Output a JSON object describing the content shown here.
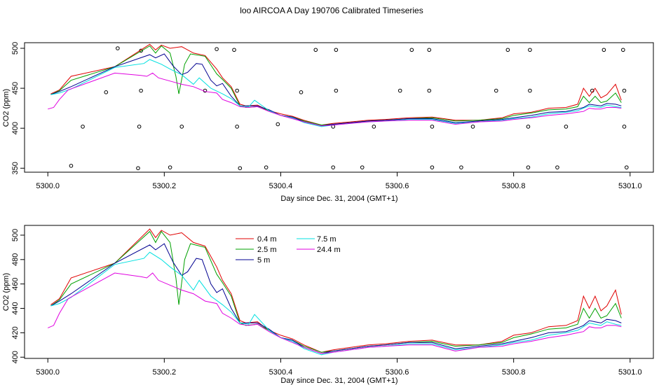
{
  "figure": {
    "title": "loo AIRCOA A  Day 190706  Calibrated Timeseries"
  },
  "chart_data": [
    {
      "type": "line",
      "name": "top-panel",
      "xlabel": "Day since Dec. 31, 2004 (GMT+1)",
      "ylabel": "CO2 (ppm)",
      "xlim": [
        5299.96,
        5301.04
      ],
      "ylim": [
        345,
        507
      ],
      "xticks": [
        5300.0,
        5300.2,
        5300.4,
        5300.6,
        5300.8,
        5301.0
      ],
      "xtick_labels": [
        "5300.0",
        "5300.2",
        "5300.4",
        "5300.6",
        "5300.8",
        "5301.0"
      ],
      "yticks": [
        350,
        400,
        450,
        500
      ],
      "ytick_labels": [
        "350",
        "400",
        "450",
        "500"
      ],
      "legend": "none",
      "calibration_points": {
        "marker": "open-circle",
        "points": [
          [
            5300.04,
            353
          ],
          [
            5300.06,
            402
          ],
          [
            5300.1,
            445
          ],
          [
            5300.12,
            500
          ],
          [
            5300.155,
            350
          ],
          [
            5300.157,
            402
          ],
          [
            5300.16,
            447
          ],
          [
            5300.16,
            497
          ],
          [
            5300.21,
            351
          ],
          [
            5300.23,
            402
          ],
          [
            5300.27,
            447
          ],
          [
            5300.29,
            499
          ],
          [
            5300.32,
            498
          ],
          [
            5300.325,
            447
          ],
          [
            5300.325,
            402
          ],
          [
            5300.33,
            350
          ],
          [
            5300.375,
            351
          ],
          [
            5300.395,
            405
          ],
          [
            5300.435,
            445
          ],
          [
            5300.46,
            498
          ],
          [
            5300.49,
            351
          ],
          [
            5300.49,
            402
          ],
          [
            5300.495,
            447
          ],
          [
            5300.495,
            498
          ],
          [
            5300.54,
            351
          ],
          [
            5300.56,
            402
          ],
          [
            5300.605,
            447
          ],
          [
            5300.625,
            498
          ],
          [
            5300.655,
            447
          ],
          [
            5300.655,
            498
          ],
          [
            5300.66,
            402
          ],
          [
            5300.66,
            351
          ],
          [
            5300.71,
            351
          ],
          [
            5300.73,
            402
          ],
          [
            5300.77,
            447
          ],
          [
            5300.79,
            498
          ],
          [
            5300.825,
            351
          ],
          [
            5300.825,
            402
          ],
          [
            5300.828,
            447
          ],
          [
            5300.828,
            498
          ],
          [
            5300.875,
            351
          ],
          [
            5300.89,
            402
          ],
          [
            5300.935,
            447
          ],
          [
            5300.955,
            498
          ],
          [
            5300.988,
            498
          ],
          [
            5300.99,
            447
          ],
          [
            5300.99,
            402
          ],
          [
            5300.994,
            351
          ]
        ]
      }
    },
    {
      "type": "line",
      "name": "bottom-panel",
      "xlabel": "Day since Dec. 31, 2004 (GMT+1)",
      "ylabel": "CO2 (ppm)",
      "xlim": [
        5299.96,
        5301.04
      ],
      "ylim": [
        399,
        508
      ],
      "xticks": [
        5300.0,
        5300.2,
        5300.4,
        5300.6,
        5300.8,
        5301.0
      ],
      "xtick_labels": [
        "5300.0",
        "5300.2",
        "5300.4",
        "5300.6",
        "5300.8",
        "5301.0"
      ],
      "yticks": [
        400,
        420,
        440,
        460,
        480,
        500
      ],
      "ytick_labels": [
        "400",
        "420",
        "440",
        "460",
        "480",
        "500"
      ],
      "legend": "top-left"
    }
  ],
  "series": [
    {
      "name": "0.4 m",
      "color": "#e00000",
      "points": [
        [
          5300.005,
          443
        ],
        [
          5300.02,
          448
        ],
        [
          5300.04,
          465
        ],
        [
          5300.115,
          477
        ],
        [
          5300.175,
          505
        ],
        [
          5300.185,
          498
        ],
        [
          5300.195,
          504
        ],
        [
          5300.21,
          500
        ],
        [
          5300.23,
          502
        ],
        [
          5300.25,
          494
        ],
        [
          5300.27,
          491
        ],
        [
          5300.29,
          474
        ],
        [
          5300.3,
          463
        ],
        [
          5300.315,
          452
        ],
        [
          5300.33,
          430
        ],
        [
          5300.34,
          428
        ],
        [
          5300.36,
          429
        ],
        [
          5300.38,
          422
        ],
        [
          5300.4,
          418
        ],
        [
          5300.42,
          415
        ],
        [
          5300.44,
          410
        ],
        [
          5300.47,
          404
        ],
        [
          5300.49,
          406
        ],
        [
          5300.52,
          408
        ],
        [
          5300.55,
          410
        ],
        [
          5300.58,
          411
        ],
        [
          5300.62,
          413
        ],
        [
          5300.66,
          414
        ],
        [
          5300.7,
          410
        ],
        [
          5300.74,
          410
        ],
        [
          5300.78,
          413
        ],
        [
          5300.8,
          418
        ],
        [
          5300.83,
          420
        ],
        [
          5300.86,
          425
        ],
        [
          5300.89,
          426
        ],
        [
          5300.91,
          430
        ],
        [
          5300.92,
          450
        ],
        [
          5300.93,
          440
        ],
        [
          5300.94,
          450
        ],
        [
          5300.95,
          438
        ],
        [
          5300.96,
          442
        ],
        [
          5300.975,
          455
        ],
        [
          5300.985,
          435
        ]
      ]
    },
    {
      "name": "2.5 m",
      "color": "#00a000",
      "points": [
        [
          5300.005,
          442
        ],
        [
          5300.02,
          447
        ],
        [
          5300.04,
          460
        ],
        [
          5300.115,
          477
        ],
        [
          5300.175,
          503
        ],
        [
          5300.185,
          494
        ],
        [
          5300.195,
          503
        ],
        [
          5300.21,
          494
        ],
        [
          5300.22,
          465
        ],
        [
          5300.225,
          443
        ],
        [
          5300.235,
          480
        ],
        [
          5300.245,
          493
        ],
        [
          5300.27,
          490
        ],
        [
          5300.29,
          468
        ],
        [
          5300.3,
          461
        ],
        [
          5300.315,
          450
        ],
        [
          5300.33,
          428
        ],
        [
          5300.34,
          426
        ],
        [
          5300.36,
          427
        ],
        [
          5300.38,
          422
        ],
        [
          5300.4,
          416
        ],
        [
          5300.42,
          414
        ],
        [
          5300.44,
          409
        ],
        [
          5300.47,
          404
        ],
        [
          5300.49,
          405
        ],
        [
          5300.52,
          407
        ],
        [
          5300.55,
          409
        ],
        [
          5300.58,
          410
        ],
        [
          5300.62,
          412
        ],
        [
          5300.66,
          413
        ],
        [
          5300.7,
          409
        ],
        [
          5300.74,
          410
        ],
        [
          5300.78,
          412
        ],
        [
          5300.8,
          416
        ],
        [
          5300.83,
          419
        ],
        [
          5300.86,
          423
        ],
        [
          5300.89,
          424
        ],
        [
          5300.91,
          427
        ],
        [
          5300.92,
          440
        ],
        [
          5300.93,
          432
        ],
        [
          5300.94,
          440
        ],
        [
          5300.95,
          432
        ],
        [
          5300.96,
          434
        ],
        [
          5300.975,
          444
        ],
        [
          5300.985,
          432
        ]
      ]
    },
    {
      "name": "5 m",
      "color": "#000090",
      "points": [
        [
          5300.005,
          442
        ],
        [
          5300.02,
          446
        ],
        [
          5300.04,
          452
        ],
        [
          5300.115,
          477
        ],
        [
          5300.175,
          492
        ],
        [
          5300.185,
          488
        ],
        [
          5300.2,
          493
        ],
        [
          5300.215,
          478
        ],
        [
          5300.23,
          467
        ],
        [
          5300.24,
          470
        ],
        [
          5300.255,
          481
        ],
        [
          5300.265,
          480
        ],
        [
          5300.28,
          460
        ],
        [
          5300.29,
          453
        ],
        [
          5300.3,
          456
        ],
        [
          5300.315,
          440
        ],
        [
          5300.33,
          428
        ],
        [
          5300.34,
          428
        ],
        [
          5300.36,
          428
        ],
        [
          5300.38,
          423
        ],
        [
          5300.4,
          416
        ],
        [
          5300.42,
          414
        ],
        [
          5300.44,
          408
        ],
        [
          5300.47,
          403
        ],
        [
          5300.49,
          405
        ],
        [
          5300.52,
          407
        ],
        [
          5300.55,
          409
        ],
        [
          5300.58,
          410
        ],
        [
          5300.62,
          412
        ],
        [
          5300.66,
          412
        ],
        [
          5300.7,
          407
        ],
        [
          5300.74,
          409
        ],
        [
          5300.78,
          411
        ],
        [
          5300.8,
          413
        ],
        [
          5300.83,
          416
        ],
        [
          5300.86,
          420
        ],
        [
          5300.89,
          421
        ],
        [
          5300.91,
          424
        ],
        [
          5300.92,
          426
        ],
        [
          5300.93,
          430
        ],
        [
          5300.94,
          429
        ],
        [
          5300.95,
          428
        ],
        [
          5300.96,
          431
        ],
        [
          5300.975,
          430
        ],
        [
          5300.985,
          428
        ]
      ]
    },
    {
      "name": "7.5 m",
      "color": "#00e0e0",
      "points": [
        [
          5300.005,
          442
        ],
        [
          5300.02,
          444
        ],
        [
          5300.04,
          449
        ],
        [
          5300.115,
          476
        ],
        [
          5300.165,
          481
        ],
        [
          5300.175,
          486
        ],
        [
          5300.195,
          480
        ],
        [
          5300.21,
          474
        ],
        [
          5300.23,
          467
        ],
        [
          5300.25,
          455
        ],
        [
          5300.26,
          463
        ],
        [
          5300.28,
          450
        ],
        [
          5300.3,
          443
        ],
        [
          5300.315,
          437
        ],
        [
          5300.33,
          428
        ],
        [
          5300.345,
          427
        ],
        [
          5300.355,
          435
        ],
        [
          5300.38,
          422
        ],
        [
          5300.4,
          416
        ],
        [
          5300.42,
          413
        ],
        [
          5300.44,
          407
        ],
        [
          5300.47,
          402
        ],
        [
          5300.49,
          404
        ],
        [
          5300.52,
          406
        ],
        [
          5300.55,
          408
        ],
        [
          5300.58,
          409
        ],
        [
          5300.62,
          411
        ],
        [
          5300.66,
          411
        ],
        [
          5300.7,
          406
        ],
        [
          5300.74,
          408
        ],
        [
          5300.78,
          410
        ],
        [
          5300.8,
          412
        ],
        [
          5300.83,
          414
        ],
        [
          5300.86,
          418
        ],
        [
          5300.89,
          420
        ],
        [
          5300.91,
          422
        ],
        [
          5300.92,
          425
        ],
        [
          5300.93,
          428
        ],
        [
          5300.94,
          427
        ],
        [
          5300.95,
          426
        ],
        [
          5300.96,
          429
        ],
        [
          5300.975,
          427
        ],
        [
          5300.985,
          426
        ]
      ]
    },
    {
      "name": "24.4 m",
      "color": "#e000e0",
      "points": [
        [
          5300.0,
          424
        ],
        [
          5300.01,
          426
        ],
        [
          5300.02,
          436
        ],
        [
          5300.035,
          448
        ],
        [
          5300.115,
          469
        ],
        [
          5300.16,
          466
        ],
        [
          5300.17,
          465
        ],
        [
          5300.18,
          469
        ],
        [
          5300.19,
          463
        ],
        [
          5300.21,
          459
        ],
        [
          5300.23,
          455
        ],
        [
          5300.25,
          452
        ],
        [
          5300.27,
          446
        ],
        [
          5300.29,
          444
        ],
        [
          5300.3,
          436
        ],
        [
          5300.315,
          432
        ],
        [
          5300.33,
          427
        ],
        [
          5300.345,
          426
        ],
        [
          5300.36,
          427
        ],
        [
          5300.38,
          421
        ],
        [
          5300.4,
          416
        ],
        [
          5300.42,
          412
        ],
        [
          5300.44,
          408
        ],
        [
          5300.47,
          403
        ],
        [
          5300.49,
          404
        ],
        [
          5300.52,
          406
        ],
        [
          5300.55,
          408
        ],
        [
          5300.58,
          409
        ],
        [
          5300.62,
          410
        ],
        [
          5300.66,
          410
        ],
        [
          5300.7,
          405
        ],
        [
          5300.74,
          408
        ],
        [
          5300.78,
          409
        ],
        [
          5300.8,
          411
        ],
        [
          5300.83,
          413
        ],
        [
          5300.86,
          416
        ],
        [
          5300.89,
          418
        ],
        [
          5300.91,
          420
        ],
        [
          5300.92,
          421
        ],
        [
          5300.93,
          425
        ],
        [
          5300.94,
          424
        ],
        [
          5300.95,
          424
        ],
        [
          5300.96,
          426
        ],
        [
          5300.975,
          426
        ],
        [
          5300.985,
          425
        ]
      ]
    }
  ]
}
